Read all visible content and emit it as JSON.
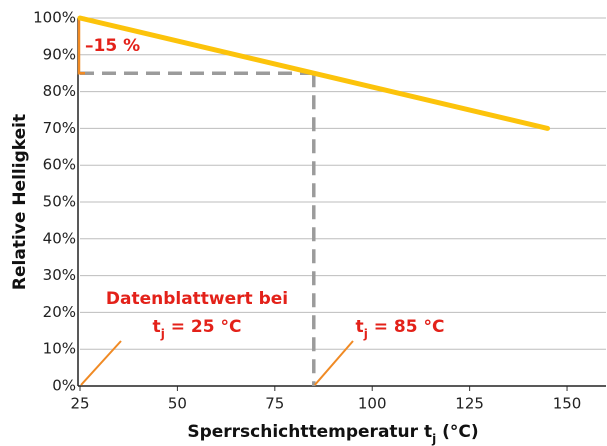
{
  "chart_data": {
    "type": "line",
    "x": [
      25,
      85,
      145
    ],
    "series": [
      {
        "name": "Relative Helligkeit",
        "color": "#fcc30b",
        "values": [
          100,
          85,
          70
        ]
      }
    ],
    "xlim": [
      25,
      160
    ],
    "xticks": [
      25,
      50,
      75,
      100,
      125,
      150
    ],
    "ylim": [
      0,
      100
    ],
    "yticks": [
      {
        "value": 0,
        "label": "0%"
      },
      {
        "value": 10,
        "label": "10%"
      },
      {
        "value": 20,
        "label": "20%"
      },
      {
        "value": 30,
        "label": "30%"
      },
      {
        "value": 40,
        "label": "40%"
      },
      {
        "value": 50,
        "label": "50%"
      },
      {
        "value": 60,
        "label": "60%"
      },
      {
        "value": 70,
        "label": "70%"
      },
      {
        "value": 80,
        "label": "80%"
      },
      {
        "value": 90,
        "label": "90%"
      },
      {
        "value": {
          "value": 100
        },
        "label": "100%"
      }
    ],
    "grid": true,
    "ylabel": "Relative Helligkeit",
    "xlabel": [
      "Sperrschichttemperatur t",
      "j",
      " (°C)"
    ],
    "annotations": {
      "drop": "–15 %",
      "datasheet": "Datenblattwert bei",
      "t25": [
        "t",
        "j",
        " = 25 °C"
      ],
      "t85": [
        "t",
        "j",
        " = 85 °C"
      ]
    }
  }
}
